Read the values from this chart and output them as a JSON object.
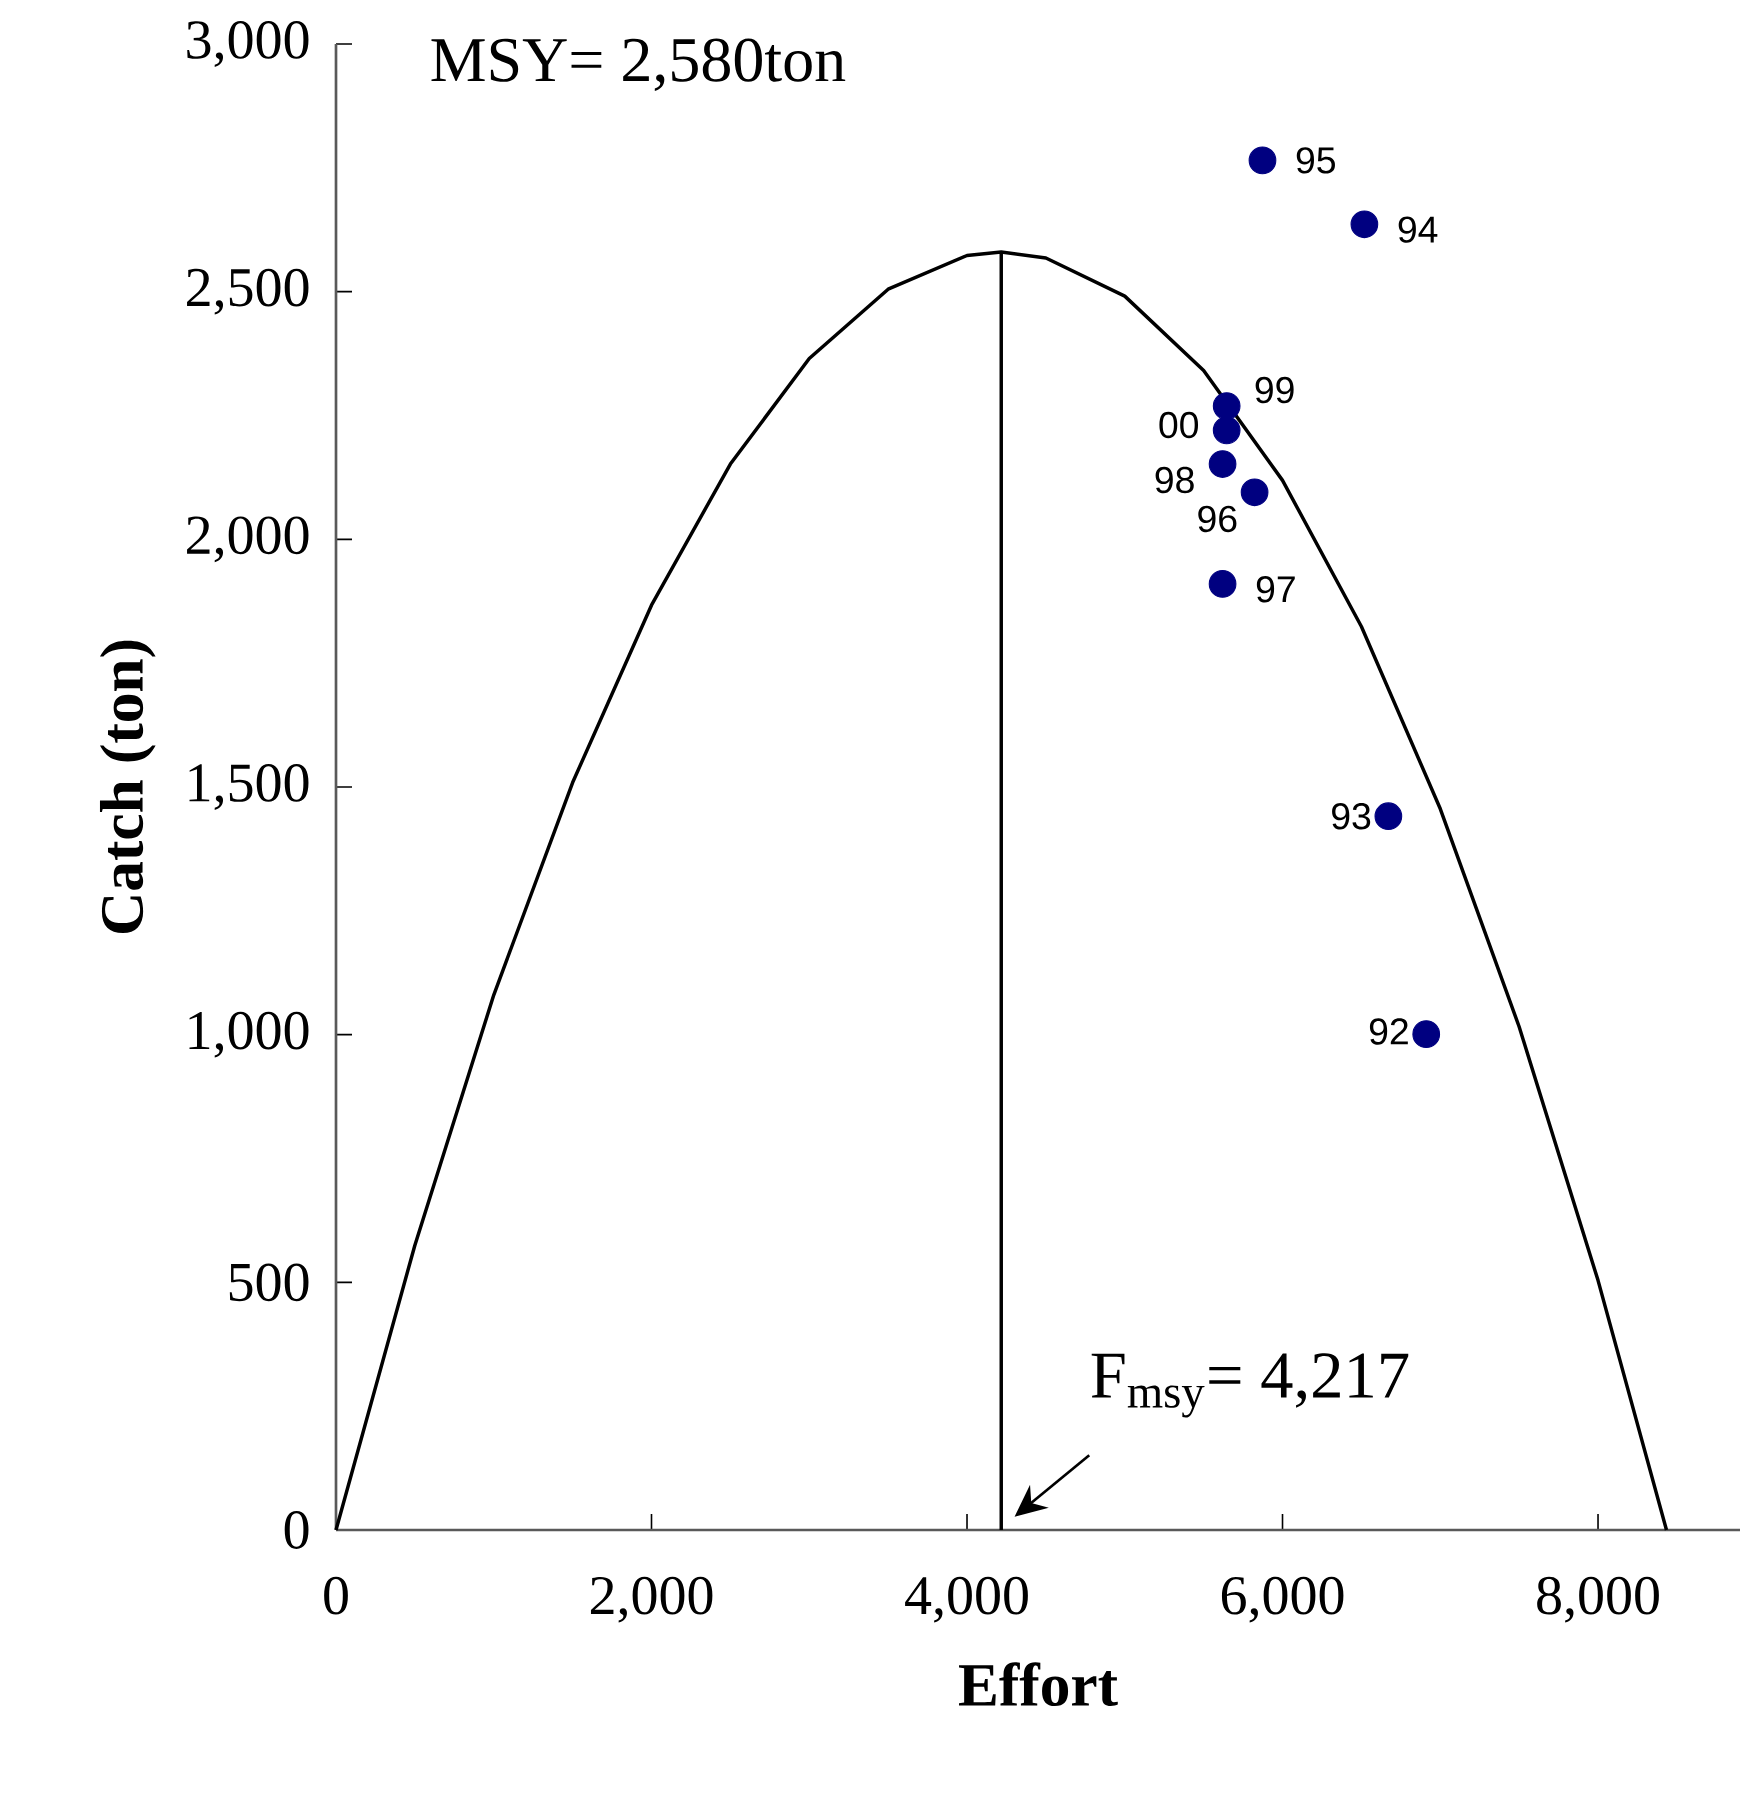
{
  "chart_data": {
    "type": "scatter",
    "xlabel": "Effort",
    "ylabel": "Catch (ton)",
    "xlim": [
      0,
      8900
    ],
    "ylim": [
      0,
      3000
    ],
    "xticks": [
      0,
      {
        "value": 2000,
        "label": "2,000"
      },
      {
        "value": 4000,
        "label": "4,000"
      },
      {
        "value": 6000,
        "label": "6,000"
      },
      {
        "value": 8000,
        "label": "8,000"
      }
    ],
    "yticks": [
      0,
      500,
      {
        "value": 1000,
        "label": "1,000"
      },
      {
        "value": 1500,
        "label": "1,500"
      },
      {
        "value": 2000,
        "label": "2,000"
      },
      {
        "value": 2500,
        "label": "2,500"
      },
      {
        "value": 3000,
        "label": "3,000"
      }
    ],
    "series": [
      {
        "type": "line",
        "color": "#000000",
        "marker": "none",
        "x": [
          0,
          500,
          1000,
          1500,
          2000,
          2500,
          3000,
          3500,
          4000,
          4217,
          4500,
          5000,
          5500,
          6000,
          6500,
          7000,
          7500,
          8000,
          8434
        ],
        "values": [
          0,
          575,
          1080,
          1509,
          1867,
          2152,
          2365,
          2505,
          2573,
          2580,
          2568,
          2491,
          2341,
          2119,
          1824,
          1456,
          1016,
          504,
          0
        ]
      },
      {
        "type": "line",
        "color": "#000000",
        "marker": "none",
        "x": [
          4217,
          4217
        ],
        "values": [
          0,
          2580
        ]
      },
      {
        "color": "#000080",
        "marker": "circle",
        "x": [
          5873,
          6519,
          5646,
          5646,
          5620,
          5823,
          5620,
          6671,
          6911
        ],
        "values": [
          2765,
          2636,
          2269,
          2220,
          2152,
          2095,
          1910,
          1441,
          1001
        ]
      }
    ],
    "annotations": [
      "MSY= 2,580ton",
      {
        "text": "F$_{msy}$= 4,217",
        "x": 4217,
        "y": 0
      },
      {
        "text": "95",
        "x": 5873,
        "y": 2765
      },
      {
        "text": "94",
        "x": 6519,
        "y": 2636
      },
      {
        "text": "99",
        "x": 5646,
        "y": 2269
      },
      {
        "text": "00",
        "x": 5646,
        "y": 2220
      },
      {
        "text": "98",
        "x": 5620,
        "y": 2152
      },
      {
        "text": "96",
        "x": 5823,
        "y": 2095
      },
      {
        "text": "97",
        "x": 5620,
        "y": 1910
      },
      {
        "text": "93",
        "x": 6671,
        "y": 1441
      },
      {
        "text": "92",
        "x": 6911,
        "y": 1001
      }
    ]
  }
}
